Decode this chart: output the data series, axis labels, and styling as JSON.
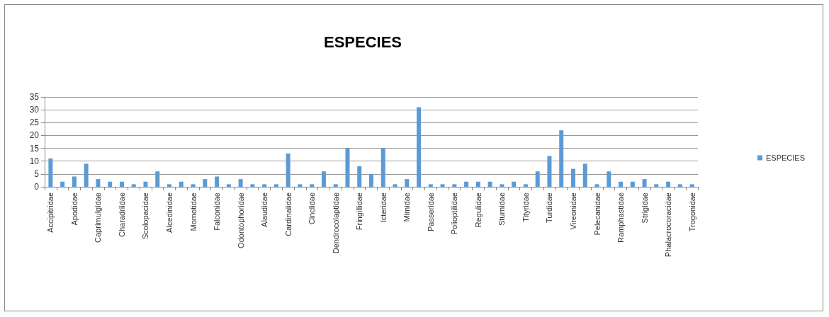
{
  "chart_data": {
    "type": "bar",
    "title": "ESPECIES",
    "categories": [
      "Accipitridae",
      null,
      "Apodidae",
      null,
      "Caprimulgidae",
      null,
      "Charadriidae",
      null,
      "Scolopacidae",
      null,
      "Alcedinidae",
      null,
      "Momotidae",
      null,
      "Falconidae",
      null,
      "Odontophoridae",
      null,
      "Alaudidae",
      null,
      "Cardinalidae",
      null,
      "Cinclidae",
      null,
      "Dendrocolaptidae",
      null,
      "Fringillidae",
      null,
      "Icteridae",
      null,
      "Mimidae",
      null,
      "Passeridae",
      null,
      "Polioptilidae",
      null,
      "Regulidae",
      null,
      "Sturnidae",
      null,
      "Tityridae",
      null,
      "Turdidae",
      null,
      "Vireonidae",
      null,
      "Pelecanidae",
      null,
      "Ramphastidae",
      null,
      "Strigidae",
      null,
      "Phalacrocoracidae",
      null,
      "Trogonidae"
    ],
    "series": [
      {
        "name": "ESPECIES",
        "color": "#5b9bd5",
        "values": [
          11,
          2,
          4,
          9,
          3,
          2,
          2,
          1,
          2,
          6,
          1,
          2,
          1,
          3,
          4,
          1,
          3,
          1,
          1,
          1,
          13,
          1,
          1,
          6,
          1,
          15,
          8,
          5,
          15,
          1,
          3,
          31,
          1,
          1,
          1,
          2,
          2,
          2,
          1,
          2,
          1,
          6,
          12,
          22,
          7,
          9,
          1,
          6,
          2,
          2,
          3,
          1,
          2,
          1,
          1
        ]
      }
    ],
    "ylim": [
      0,
      35
    ],
    "yticks": [
      0,
      5,
      10,
      15,
      20,
      25,
      30,
      35
    ],
    "grid": "y",
    "legend": "right"
  }
}
